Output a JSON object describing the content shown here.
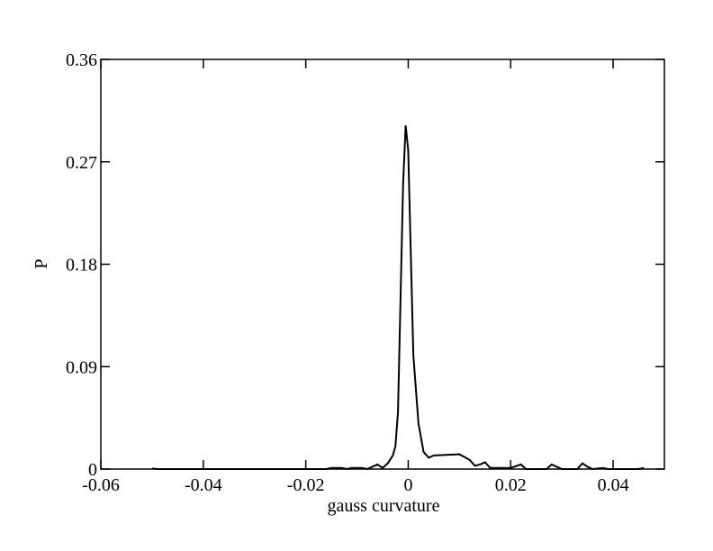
{
  "chart_data": {
    "type": "line",
    "xlabel": "gauss curvature",
    "ylabel": "P",
    "x": [
      -0.05,
      -0.049,
      -0.016,
      -0.015,
      -0.013,
      -0.012,
      -0.011,
      -0.009,
      -0.008,
      -0.007,
      -0.006,
      -0.005,
      -0.004,
      -0.003,
      -0.0025,
      -0.002,
      -0.0015,
      -0.001,
      -0.0005,
      0,
      0.0005,
      0.001,
      0.002,
      0.003,
      0.004,
      0.005,
      0.01,
      0.012,
      0.013,
      0.014,
      0.015,
      0.016,
      0.02,
      0.022,
      0.023,
      0.027,
      0.028,
      0.029,
      0.03,
      0.033,
      0.034,
      0.035,
      0.036,
      0.038,
      0.039,
      0.045,
      0.046
    ],
    "values": [
      0.0005,
      0,
      0,
      0.001,
      0.001,
      0,
      0.001,
      0.001,
      0,
      0.002,
      0.004,
      0.001,
      0.005,
      0.012,
      0.02,
      0.05,
      0.15,
      0.25,
      0.302,
      0.28,
      0.19,
      0.1,
      0.04,
      0.015,
      0.01,
      0.012,
      0.013,
      0.008,
      0.003,
      0.004,
      0.006,
      0.001,
      0.001,
      0.004,
      0,
      0,
      0.004,
      0.002,
      0,
      0,
      0.005,
      0.002,
      0,
      0.001,
      0,
      0,
      0.001
    ],
    "color": "#000000",
    "xlim": [
      -0.06,
      0.05
    ],
    "xticks": [
      -0.06,
      -0.04,
      -0.02,
      0,
      0.02,
      0.04
    ],
    "ylim": [
      0,
      0.36
    ],
    "yticks": [
      0,
      0.09,
      0.18,
      0.27,
      0.36
    ]
  }
}
